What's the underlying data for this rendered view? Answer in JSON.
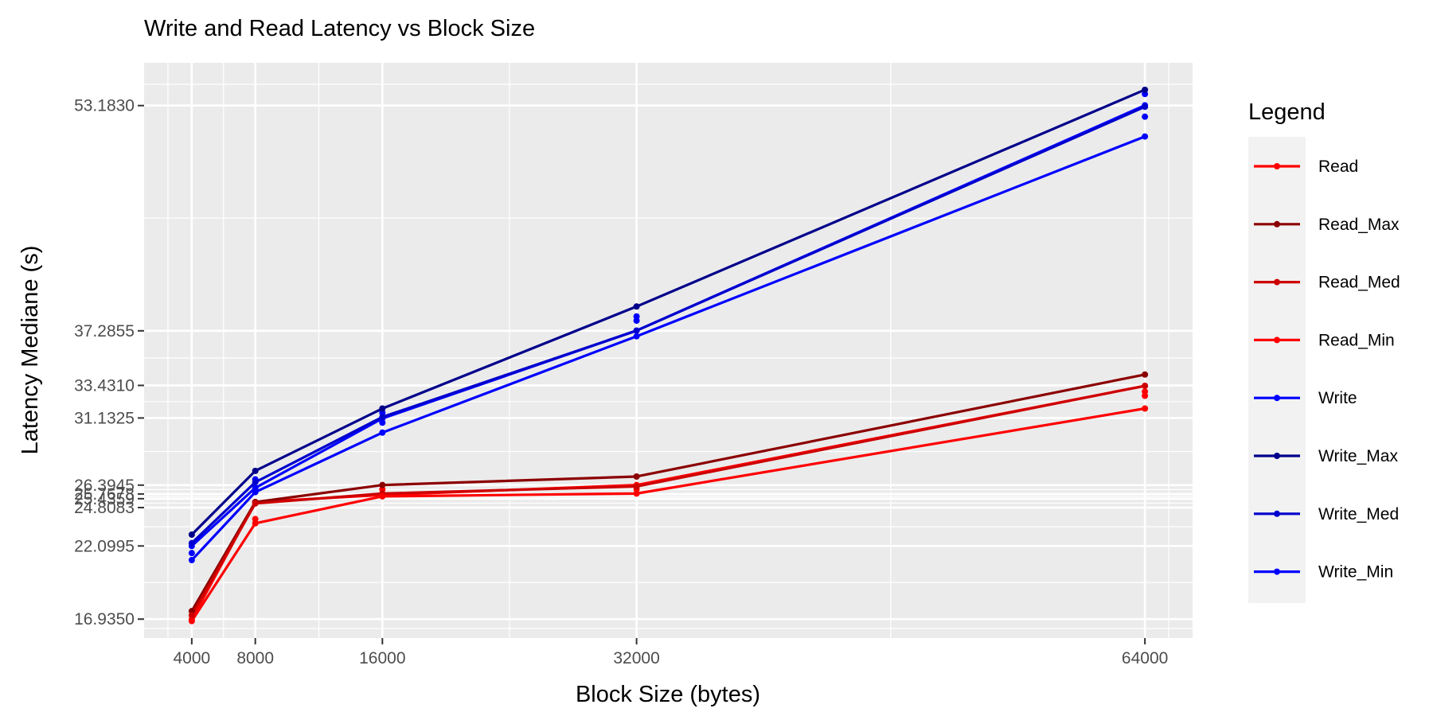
{
  "chart_data": {
    "type": "line",
    "title": "Write and Read Latency vs Block Size",
    "xlabel": "Block Size (bytes)",
    "ylabel": "Latency Mediane (s)",
    "x_ticks": [
      4000,
      8000,
      16000,
      32000,
      64000
    ],
    "y_ticks": [
      {
        "value": 16.935,
        "label": "16.9350"
      },
      {
        "value": 22.0995,
        "label": "22.0995"
      },
      {
        "value": 24.8083,
        "label": "24.8083"
      },
      {
        "value": 25.4359,
        "label": "25.4359"
      },
      {
        "value": 25.7678,
        "label": "25.7678"
      },
      {
        "value": 26.3945,
        "label": "26.3945"
      },
      {
        "value": 31.1325,
        "label": "31.1325"
      },
      {
        "value": 33.431,
        "label": "33.4310"
      },
      {
        "value": 37.2855,
        "label": "37.2855"
      },
      {
        "value": 53.183,
        "label": "53.1830"
      }
    ],
    "xlim": [
      1000,
      67000
    ],
    "ylim": [
      15.6,
      56.2
    ],
    "grid": true,
    "legend": {
      "title": "Legend",
      "position": "right"
    },
    "x": [
      4000,
      8000,
      16000,
      32000,
      64000
    ],
    "series": [
      {
        "name": "Read",
        "color": "#ff0000",
        "values": [
          16.9,
          25.2,
          25.7,
          26.4,
          33.4
        ],
        "extra_points": [
          {
            "x": 8000,
            "y": 24.0
          },
          {
            "x": 16000,
            "y": 26.1
          },
          {
            "x": 32000,
            "y": 26.1
          },
          {
            "x": 64000,
            "y": 32.7
          },
          {
            "x": 64000,
            "y": 33.0
          }
        ]
      },
      {
        "name": "Read_Max",
        "color": "#8b0000",
        "values": [
          17.5,
          25.2,
          26.4,
          27.0,
          34.2
        ]
      },
      {
        "name": "Read_Med",
        "color": "#cd0000",
        "values": [
          17.2,
          25.1,
          25.8,
          26.3,
          33.4
        ]
      },
      {
        "name": "Read_Min",
        "color": "#ff0000",
        "values": [
          16.8,
          23.7,
          25.6,
          25.8,
          31.8
        ]
      },
      {
        "name": "Write",
        "color": "#0000ff",
        "values": [
          22.1,
          26.2,
          31.1,
          37.3,
          53.2
        ],
        "extra_points": [
          {
            "x": 4000,
            "y": 21.6
          },
          {
            "x": 8000,
            "y": 26.8
          },
          {
            "x": 16000,
            "y": 30.8
          },
          {
            "x": 16000,
            "y": 31.5
          },
          {
            "x": 32000,
            "y": 38.0
          },
          {
            "x": 32000,
            "y": 38.3
          },
          {
            "x": 64000,
            "y": 52.4
          },
          {
            "x": 64000,
            "y": 54.0
          }
        ]
      },
      {
        "name": "Write_Max",
        "color": "#00008b",
        "values": [
          22.9,
          27.4,
          31.8,
          39.0,
          54.3
        ]
      },
      {
        "name": "Write_Med",
        "color": "#0000cd",
        "values": [
          22.3,
          26.6,
          31.2,
          37.3,
          53.1
        ]
      },
      {
        "name": "Write_Min",
        "color": "#0000ff",
        "values": [
          21.1,
          25.9,
          30.1,
          36.9,
          51.0
        ]
      }
    ]
  }
}
